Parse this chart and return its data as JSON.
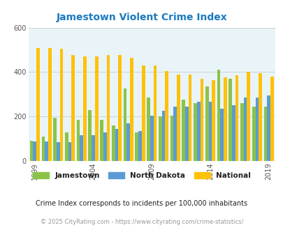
{
  "title": "Jamestown Violent Crime Index",
  "years": [
    1999,
    2000,
    2001,
    2002,
    2003,
    2004,
    2005,
    2006,
    2007,
    2008,
    2009,
    2010,
    2011,
    2012,
    2013,
    2014,
    2015,
    2016,
    2017,
    2018,
    2019
  ],
  "jamestown": [
    90,
    110,
    195,
    130,
    185,
    230,
    185,
    160,
    325,
    130,
    285,
    200,
    205,
    275,
    260,
    335,
    410,
    370,
    260,
    245,
    245
  ],
  "north_dakota": [
    88,
    88,
    85,
    85,
    115,
    115,
    130,
    145,
    170,
    135,
    205,
    225,
    245,
    245,
    265,
    265,
    235,
    250,
    285,
    285,
    295
  ],
  "national": [
    507,
    507,
    505,
    475,
    470,
    470,
    475,
    475,
    465,
    430,
    430,
    405,
    390,
    390,
    370,
    365,
    375,
    385,
    400,
    395,
    380
  ],
  "ylim": [
    0,
    600
  ],
  "yticks": [
    0,
    200,
    400,
    600
  ],
  "xtick_years": [
    1999,
    2004,
    2009,
    2014,
    2019
  ],
  "bar_colors": {
    "jamestown": "#8bc34a",
    "north_dakota": "#5b9bd5",
    "national": "#ffc107"
  },
  "plot_bg": "#e8f4f8",
  "title_color": "#1a7abf",
  "legend_labels": [
    "Jamestown",
    "North Dakota",
    "National"
  ],
  "subtitle": "Crime Index corresponds to incidents per 100,000 inhabitants",
  "footer": "© 2025 CityRating.com - https://www.cityrating.com/crime-statistics/",
  "subtitle_color": "#222222",
  "footer_color": "#999999",
  "grid_color": "#cccccc",
  "bar_width": 0.28
}
